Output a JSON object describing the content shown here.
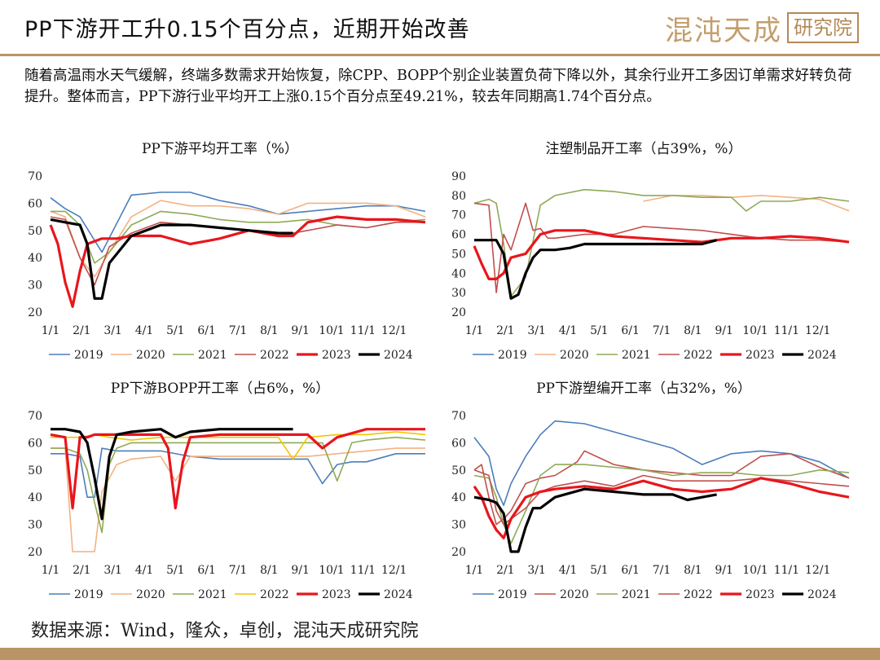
{
  "header": {
    "title": "PP下游开工升0.15个百分点，近期开始改善",
    "logo_name": "混沌天成",
    "logo_box": "研究院"
  },
  "intro": "随着高温雨水天气缓解，终端多数需求开始恢复，除CPP、BOPP个别企业装置负荷下降以外，其余行业开工多因订单需求好转负荷提升。整体而言，PP下游行业平均开工上涨0.15个百分点至49.21%，较去年同期高1.74个百分点。",
  "footer": {
    "source": "数据来源：Wind，隆众，卓创，混沌天成研究院"
  },
  "chart_data": [
    {
      "type": "line",
      "title": "PP下游平均开工率（%）",
      "x_tick_labels": [
        "1/1",
        "2/1",
        "3/1",
        "4/1",
        "5/1",
        "6/1",
        "7/1",
        "8/1",
        "9/1",
        "10/1",
        "11/1",
        "12/1"
      ],
      "ylim": [
        20,
        70
      ],
      "y_ticks": [
        20,
        30,
        40,
        50,
        60,
        70
      ],
      "grid": false,
      "legend": "bottom",
      "series": [
        {
          "name": "2019",
          "color": "#4a7ebb",
          "x": [
            1,
            3,
            5,
            8,
            12,
            16,
            20,
            24,
            28,
            32,
            36,
            40,
            44,
            48,
            52
          ],
          "y": [
            62,
            58,
            55,
            42,
            63,
            64,
            64,
            61,
            59,
            56,
            57,
            58,
            59,
            59,
            57
          ]
        },
        {
          "name": "2020",
          "color": "#f4b183",
          "x": [
            1,
            3,
            5,
            7,
            9,
            12,
            16,
            20,
            24,
            28,
            32,
            36,
            40,
            44,
            48,
            52
          ],
          "y": [
            57,
            55,
            40,
            33,
            42,
            55,
            61,
            59,
            59,
            58,
            56,
            60,
            60,
            60,
            59,
            55
          ]
        },
        {
          "name": "2021",
          "color": "#8faa57",
          "x": [
            1,
            3,
            5,
            7,
            9,
            12,
            16,
            20,
            24,
            28,
            32,
            36,
            40,
            44,
            48,
            52
          ],
          "y": [
            57,
            57,
            52,
            38,
            42,
            52,
            57,
            56,
            54,
            53,
            53,
            54,
            52,
            51,
            53,
            54
          ]
        },
        {
          "name": "2022",
          "color": "#c0504d",
          "x": [
            1,
            3,
            5,
            7,
            9,
            12,
            16,
            20,
            24,
            28,
            32,
            36,
            40,
            44,
            48,
            52
          ],
          "y": [
            55,
            54,
            40,
            30,
            44,
            49,
            53,
            52,
            51,
            50,
            48,
            50,
            52,
            51,
            53,
            53
          ]
        },
        {
          "name": "2023",
          "color": "#e8161c",
          "x": [
            1,
            2,
            3,
            4,
            5,
            6,
            8,
            10,
            12,
            16,
            20,
            22,
            24,
            28,
            32,
            34,
            36,
            40,
            44,
            48,
            52
          ],
          "y": [
            52,
            45,
            31,
            22,
            35,
            45,
            47,
            47,
            48,
            48,
            45,
            46,
            47,
            50,
            48,
            48,
            53,
            55,
            54,
            54,
            53
          ]
        },
        {
          "name": "2024",
          "color": "#000000",
          "x": [
            1,
            3,
            5,
            6,
            7,
            8,
            9,
            12,
            16,
            20,
            24,
            28,
            32,
            34
          ],
          "y": [
            54,
            53,
            52,
            45,
            25,
            25,
            38,
            48,
            52,
            52,
            51,
            50,
            49,
            49
          ]
        }
      ]
    },
    {
      "type": "line",
      "title": "注塑制品开工率（占39%，%）",
      "x_tick_labels": [
        "1/1",
        "2/1",
        "3/1",
        "4/1",
        "5/1",
        "6/1",
        "7/1",
        "8/1",
        "9/1",
        "10/1",
        "11/1",
        "12/1"
      ],
      "ylim": [
        20,
        90
      ],
      "y_ticks": [
        20,
        30,
        40,
        50,
        60,
        70,
        80,
        90
      ],
      "grid": false,
      "legend": "bottom",
      "series": [
        {
          "name": "2019",
          "color": "#4a7ebb",
          "x": [],
          "y": []
        },
        {
          "name": "2020",
          "color": "#f4b183",
          "x": [
            24,
            28,
            32,
            36,
            40,
            44,
            48,
            52
          ],
          "y": [
            77,
            80,
            80,
            79,
            80,
            79,
            78,
            72
          ]
        },
        {
          "name": "2021",
          "color": "#8faa57",
          "x": [
            1,
            3,
            4,
            5,
            6,
            8,
            10,
            12,
            16,
            20,
            24,
            28,
            32,
            36,
            38,
            40,
            44,
            48,
            52
          ],
          "y": [
            76,
            78,
            76,
            55,
            28,
            38,
            75,
            80,
            83,
            82,
            80,
            80,
            79,
            79,
            72,
            77,
            77,
            79,
            77
          ]
        },
        {
          "name": "2022",
          "color": "#c0504d",
          "x": [
            1,
            3,
            4,
            5,
            6,
            8,
            9,
            10,
            11,
            12,
            16,
            20,
            24,
            28,
            32,
            36,
            40,
            44,
            48,
            52
          ],
          "y": [
            76,
            75,
            30,
            60,
            52,
            76,
            62,
            63,
            58,
            58,
            60,
            60,
            64,
            63,
            62,
            60,
            58,
            57,
            57,
            56
          ]
        },
        {
          "name": "2023",
          "color": "#e8161c",
          "x": [
            1,
            2,
            3,
            4,
            5,
            6,
            8,
            10,
            12,
            16,
            20,
            24,
            28,
            32,
            36,
            40,
            44,
            48,
            52
          ],
          "y": [
            54,
            45,
            37,
            37,
            40,
            48,
            50,
            60,
            62,
            62,
            59,
            58,
            57,
            56,
            58,
            58,
            59,
            58,
            56
          ]
        },
        {
          "name": "2024",
          "color": "#000000",
          "x": [
            1,
            3,
            4,
            5,
            6,
            7,
            8,
            9,
            10,
            12,
            14,
            16,
            20,
            24,
            28,
            32,
            34
          ],
          "y": [
            57,
            57,
            57,
            50,
            27,
            29,
            40,
            48,
            52,
            52,
            53,
            55,
            55,
            55,
            55,
            55,
            57
          ]
        }
      ]
    },
    {
      "type": "line",
      "title": "PP下游BOPP开工率（占6%，%）",
      "x_tick_labels": [
        "1/1",
        "2/1",
        "3/1",
        "4/1",
        "5/1",
        "6/1",
        "7/1",
        "8/1",
        "9/1",
        "10/1",
        "11/1",
        "12/1"
      ],
      "ylim": [
        20,
        70
      ],
      "y_ticks": [
        20,
        30,
        40,
        50,
        60,
        70
      ],
      "grid": false,
      "legend": "bottom",
      "series": [
        {
          "name": "2019",
          "color": "#4a7ebb",
          "x": [
            1,
            3,
            5,
            6,
            7,
            8,
            10,
            12,
            16,
            20,
            24,
            28,
            32,
            36,
            38,
            40,
            42,
            44,
            48,
            52
          ],
          "y": [
            56,
            56,
            55,
            40,
            40,
            58,
            57,
            57,
            57,
            55,
            54,
            54,
            54,
            54,
            45,
            52,
            53,
            53,
            56,
            56
          ]
        },
        {
          "name": "2020",
          "color": "#f4b183",
          "x": [
            1,
            3,
            4,
            5,
            6,
            7,
            8,
            10,
            12,
            16,
            18,
            20,
            24,
            28,
            32,
            36,
            40,
            44,
            48,
            52
          ],
          "y": [
            58,
            58,
            20,
            20,
            20,
            20,
            42,
            52,
            54,
            55,
            46,
            55,
            55,
            55,
            55,
            55,
            56,
            57,
            58,
            58
          ]
        },
        {
          "name": "2021",
          "color": "#8faa57",
          "x": [
            1,
            3,
            5,
            6,
            7,
            8,
            9,
            10,
            12,
            16,
            20,
            24,
            28,
            32,
            36,
            38,
            40,
            42,
            44,
            48,
            52
          ],
          "y": [
            58,
            58,
            56,
            50,
            38,
            27,
            52,
            58,
            60,
            60,
            60,
            60,
            60,
            60,
            60,
            60,
            46,
            60,
            61,
            62,
            61
          ]
        },
        {
          "name": "2022",
          "color": "#f5c400",
          "x": [
            1,
            3,
            5,
            7,
            9,
            12,
            16,
            20,
            24,
            28,
            32,
            33,
            34,
            35,
            36,
            40,
            44,
            48,
            52
          ],
          "y": [
            62,
            62,
            62,
            63,
            62,
            61,
            62,
            62,
            62,
            62,
            62,
            58,
            54,
            58,
            62,
            63,
            63,
            64,
            63
          ]
        },
        {
          "name": "2023",
          "color": "#e8161c",
          "x": [
            1,
            3,
            4,
            5,
            6,
            7,
            8,
            10,
            12,
            16,
            17,
            18,
            19,
            20,
            24,
            28,
            32,
            36,
            38,
            40,
            44,
            48,
            52
          ],
          "y": [
            63,
            62,
            36,
            62,
            62,
            63,
            63,
            63,
            63,
            63,
            58,
            36,
            53,
            62,
            63,
            63,
            63,
            63,
            58,
            62,
            65,
            65,
            65
          ]
        },
        {
          "name": "2024",
          "color": "#000000",
          "x": [
            1,
            3,
            5,
            6,
            7,
            8,
            9,
            10,
            12,
            16,
            18,
            20,
            24,
            28,
            32,
            34
          ],
          "y": [
            65,
            65,
            64,
            60,
            47,
            32,
            55,
            63,
            64,
            65,
            62,
            64,
            65,
            65,
            65,
            65
          ]
        }
      ]
    },
    {
      "type": "line",
      "title": "PP下游塑编开工率（占32%，%）",
      "x_tick_labels": [
        "1/1",
        "2/1",
        "3/1",
        "4/1",
        "5/1",
        "6/1",
        "7/1",
        "8/1",
        "9/1",
        "10/1",
        "11/1",
        "12/1"
      ],
      "ylim": [
        20,
        70
      ],
      "y_ticks": [
        20,
        30,
        40,
        50,
        60,
        70
      ],
      "grid": false,
      "legend": "bottom",
      "series": [
        {
          "name": "2019",
          "color": "#4a7ebb",
          "x": [
            1,
            3,
            4,
            5,
            6,
            8,
            10,
            12,
            16,
            20,
            24,
            28,
            32,
            36,
            40,
            44,
            48,
            52
          ],
          "y": [
            62,
            55,
            43,
            37,
            45,
            55,
            63,
            68,
            67,
            64,
            61,
            58,
            52,
            56,
            57,
            56,
            53,
            47
          ]
        },
        {
          "name": "2020",
          "color": "#c0504d",
          "x": [
            1,
            2,
            3,
            4,
            5,
            6,
            7,
            8,
            10,
            12,
            15,
            16,
            20,
            24,
            28,
            32,
            36,
            40,
            44,
            48,
            52
          ],
          "y": [
            50,
            52,
            40,
            30,
            32,
            35,
            40,
            45,
            47,
            48,
            53,
            57,
            52,
            50,
            49,
            48,
            48,
            55,
            56,
            51,
            47
          ]
        },
        {
          "name": "2021",
          "color": "#8faa57",
          "x": [
            1,
            3,
            4,
            5,
            6,
            8,
            10,
            12,
            16,
            20,
            24,
            28,
            32,
            36,
            40,
            44,
            48,
            52
          ],
          "y": [
            48,
            47,
            40,
            30,
            23,
            35,
            48,
            52,
            52,
            51,
            50,
            48,
            49,
            49,
            48,
            48,
            50,
            49
          ]
        },
        {
          "name": "2022",
          "color": "#c0504d",
          "x": [
            1,
            3,
            4,
            5,
            6,
            8,
            10,
            12,
            16,
            20,
            24,
            28,
            32,
            36,
            40,
            44,
            48,
            52
          ],
          "y": [
            50,
            48,
            35,
            30,
            32,
            36,
            42,
            44,
            46,
            44,
            48,
            46,
            46,
            46,
            47,
            46,
            45,
            44
          ]
        },
        {
          "name": "2023",
          "color": "#e8161c",
          "x": [
            1,
            2,
            3,
            4,
            5,
            6,
            8,
            10,
            12,
            16,
            20,
            24,
            28,
            32,
            36,
            40,
            44,
            48,
            52
          ],
          "y": [
            44,
            40,
            33,
            28,
            25,
            32,
            40,
            42,
            43,
            44,
            43,
            46,
            43,
            42,
            43,
            47,
            45,
            42,
            40
          ]
        },
        {
          "name": "2024",
          "color": "#000000",
          "x": [
            1,
            3,
            4,
            5,
            6,
            7,
            8,
            9,
            10,
            12,
            16,
            20,
            24,
            28,
            30,
            32,
            34
          ],
          "y": [
            40,
            39,
            38,
            34,
            20,
            20,
            29,
            36,
            36,
            40,
            43,
            42,
            41,
            41,
            39,
            40,
            41
          ]
        }
      ]
    }
  ]
}
